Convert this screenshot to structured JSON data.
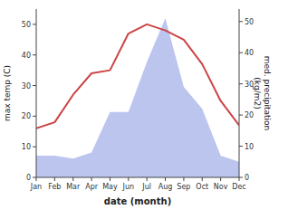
{
  "chart_data": {
    "type": "line",
    "categories": [
      "Jan",
      "Feb",
      "Mar",
      "Apr",
      "May",
      "Jun",
      "Jul",
      "Aug",
      "Sep",
      "Oct",
      "Nov",
      "Dec"
    ],
    "xlabel": "date (month)",
    "ylabel": "max temp (C)",
    "y2label": "med. precipitation\n(kg/m2)",
    "ylim": [
      0,
      55
    ],
    "yticks": [
      0,
      10,
      20,
      30,
      40,
      50
    ],
    "y2lim": [
      0,
      54
    ],
    "y2ticks": [
      0,
      10,
      20,
      30,
      40,
      50
    ],
    "series": [
      {
        "type": "area",
        "axis": "y2",
        "color": "#bcc5ee",
        "values": [
          7,
          7,
          6,
          8,
          21,
          21,
          37,
          51,
          29,
          22,
          7,
          5
        ]
      },
      {
        "type": "line",
        "color": "#cc4444",
        "values": [
          16,
          18,
          27,
          34,
          35,
          47,
          50,
          48,
          45,
          37,
          25,
          17
        ]
      }
    ]
  }
}
